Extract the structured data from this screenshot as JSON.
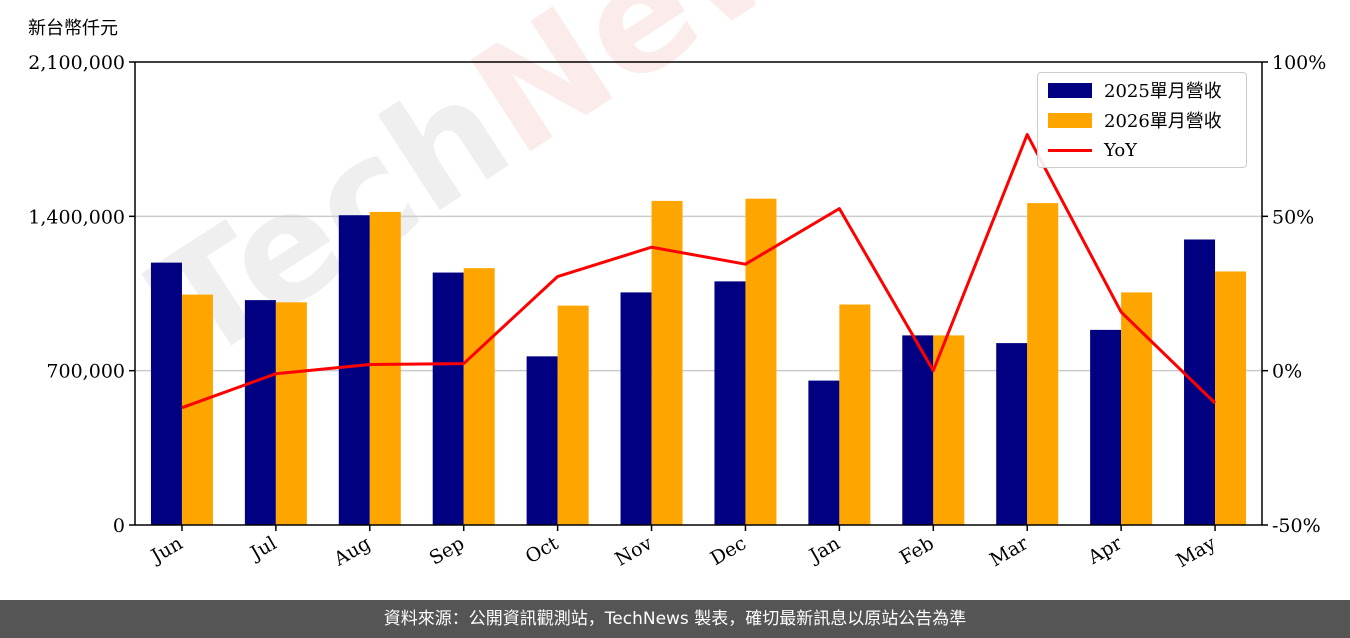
{
  "unit_label": "新台幣仟元",
  "footer": "資料來源：公開資訊觀測站，TechNews 製表，確切最新訊息以原站公告為準",
  "watermark": {
    "prefix": "Tech",
    "suffix": "News"
  },
  "colors": {
    "series_2025": "#000080",
    "series_2026": "#FFA500",
    "yoy": "#FF0000",
    "grid": "#cccccc"
  },
  "chart_data": {
    "type": "bar",
    "categories": [
      "Jun",
      "Jul",
      "Aug",
      "Sep",
      "Oct",
      "Nov",
      "Dec",
      "Jan",
      "Feb",
      "Mar",
      "Apr",
      "May"
    ],
    "series": [
      {
        "name": "2025單月營收",
        "type": "bar",
        "values": [
          1190000,
          1020000,
          1405000,
          1145000,
          765000,
          1055000,
          1105000,
          655000,
          860000,
          825000,
          885000,
          1295000
        ]
      },
      {
        "name": "2026單月營收",
        "type": "bar",
        "values": [
          1045000,
          1010000,
          1420000,
          1165000,
          995000,
          1470000,
          1480000,
          1000000,
          860000,
          1460000,
          1055000,
          1150000
        ]
      },
      {
        "name": "YoY",
        "type": "line",
        "axis": "right",
        "values": [
          -12,
          -1,
          2,
          2.3,
          30.5,
          40,
          34.5,
          52.5,
          0,
          76.5,
          19,
          -10.5
        ]
      }
    ],
    "y_left": {
      "min": 0,
      "max": 2100000,
      "ticks": [
        0,
        700000,
        1400000,
        2100000
      ],
      "tick_labels": [
        "0",
        "700,000",
        "1,400,000",
        "2,100,000"
      ]
    },
    "y_right": {
      "min": -50,
      "max": 100,
      "ticks": [
        -50,
        0,
        50,
        100
      ],
      "tick_labels": [
        "-50%",
        "0%",
        "50%",
        "100%"
      ]
    },
    "grid": "horizontal",
    "legend_placement": "top-right"
  }
}
